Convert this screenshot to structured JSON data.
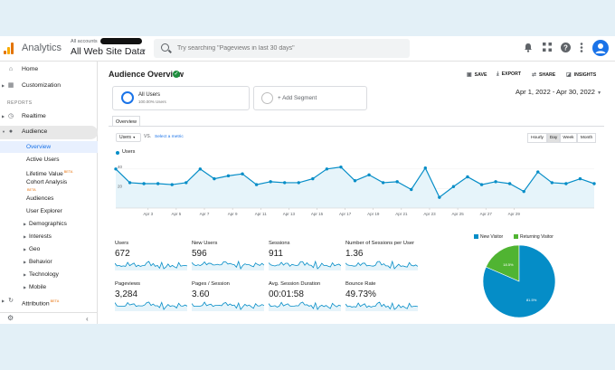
{
  "topbar": {
    "app_title": "Analytics",
    "account_small": "All accounts",
    "account_main": "All Web Site Data",
    "search_placeholder": "Try searching \"Pageviews in last 30 days\""
  },
  "sidebar": {
    "home": "Home",
    "customization": "Customization",
    "reports_header": "REPORTS",
    "realtime": "Realtime",
    "audience": "Audience",
    "sub": {
      "overview": "Overview",
      "active_users": "Active Users",
      "lifetime_value": "Lifetime Value",
      "cohort_analysis": "Cohort Analysis",
      "audiences": "Audiences",
      "user_explorer": "User Explorer",
      "demographics": "Demographics",
      "interests": "Interests",
      "geo": "Geo",
      "behavior": "Behavior",
      "technology": "Technology",
      "mobile": "Mobile"
    },
    "beta": "BETA",
    "attribution": "Attribution"
  },
  "report": {
    "title": "Audience Overview",
    "actions": {
      "save": "SAVE",
      "export": "EXPORT",
      "share": "SHARE",
      "insights": "INSIGHTS"
    },
    "date_range": "Apr 1, 2022 - Apr 30, 2022",
    "segment_name": "All Users",
    "segment_pct": "100.00% Users",
    "add_segment": "+ Add Segment",
    "tab": "Overview",
    "metric_select": "Users",
    "vs": "VS.",
    "select_metric": "Select a metric",
    "granularity": [
      "Hourly",
      "Day",
      "Week",
      "Month"
    ],
    "granularity_selected": "Day",
    "legend": "Users"
  },
  "chart_data": {
    "type": "line",
    "series": [
      {
        "name": "Users",
        "values": [
          40,
          26,
          25,
          25,
          24,
          26,
          40,
          30,
          33,
          35,
          24,
          27,
          26,
          26,
          30,
          40,
          42,
          28,
          34,
          26,
          27,
          19,
          41,
          11,
          22,
          32,
          24,
          27,
          25,
          17,
          37,
          26,
          25,
          30,
          25
        ]
      }
    ],
    "x_ticks": [
      "Apr 3",
      "Apr 5",
      "Apr 7",
      "Apr 9",
      "Apr 11",
      "Apr 13",
      "Apr 15",
      "Apr 17",
      "Apr 19",
      "Apr 21",
      "Apr 23",
      "Apr 25",
      "Apr 27",
      "Apr 29"
    ],
    "y_ticks": [
      "40",
      "20"
    ],
    "ylim": [
      0,
      50
    ],
    "color": "#058dc7"
  },
  "scorecards": [
    {
      "name": "Users",
      "value": "672"
    },
    {
      "name": "New Users",
      "value": "596"
    },
    {
      "name": "Sessions",
      "value": "911"
    },
    {
      "name": "Number of Sessions per User",
      "value": "1.36"
    },
    {
      "name": "Pageviews",
      "value": "3,284"
    },
    {
      "name": "Pages / Session",
      "value": "3.60"
    },
    {
      "name": "Avg. Session Duration",
      "value": "00:01:58"
    },
    {
      "name": "Bounce Rate",
      "value": "49.73%"
    }
  ],
  "pie": {
    "legend": [
      {
        "name": "New Visitor",
        "color": "#058dc7"
      },
      {
        "name": "Returning Visitor",
        "color": "#50b432"
      }
    ],
    "slices": [
      {
        "label": "81.5%",
        "value": 81.5,
        "color": "#058dc7"
      },
      {
        "label": "18.5%",
        "value": 18.5,
        "color": "#50b432"
      }
    ]
  }
}
